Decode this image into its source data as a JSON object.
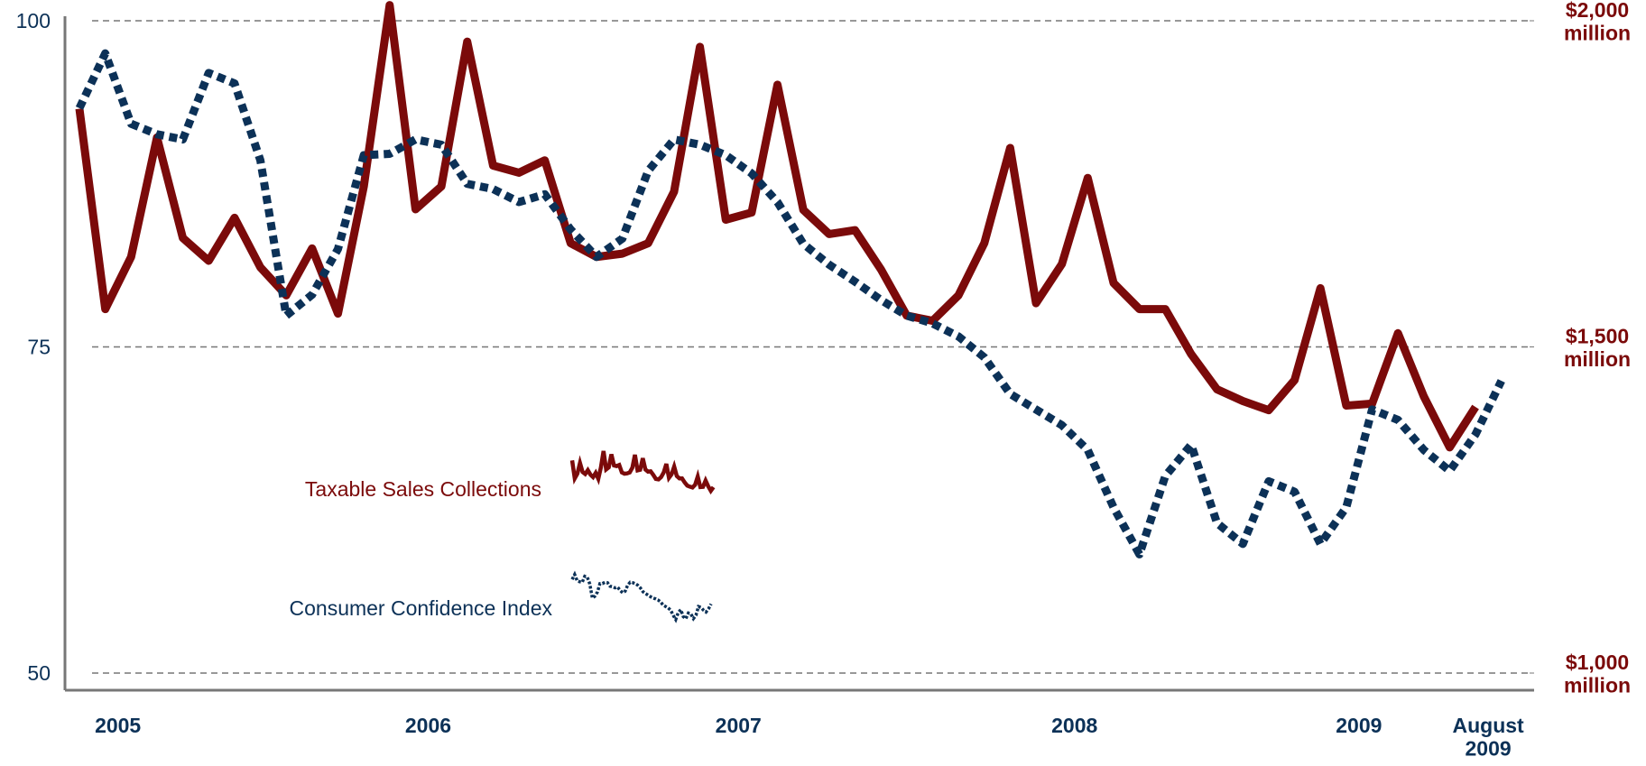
{
  "chart_data": {
    "type": "line",
    "categories": [
      null,
      "2005",
      null,
      null,
      null,
      null,
      null,
      null,
      null,
      null,
      null,
      null,
      null,
      "2006",
      null,
      null,
      null,
      null,
      null,
      null,
      null,
      null,
      null,
      null,
      null,
      "2007",
      null,
      null,
      null,
      null,
      null,
      null,
      null,
      null,
      null,
      null,
      null,
      null,
      "2008",
      null,
      null,
      null,
      null,
      null,
      null,
      null,
      null,
      null,
      null,
      "2009",
      null,
      null,
      null,
      null,
      "August 2009",
      null
    ],
    "series": [
      {
        "name": "Taxable Sales Collections",
        "color": "#7b0a0a",
        "axis": "y2",
        "style": "solid",
        "values": [
          1865,
          1558,
          1638,
          1821,
          1667,
          1632,
          1698,
          1622,
          1579,
          1651,
          1551,
          1746,
          2024,
          1711,
          1746,
          1968,
          1778,
          1767,
          1786,
          1659,
          1638,
          1643,
          1659,
          1738,
          1960,
          1695,
          1706,
          1902,
          1710,
          1673,
          1679,
          1619,
          1548,
          1540,
          1579,
          1659,
          1805,
          1567,
          1627,
          1759,
          1598,
          1558,
          1558,
          1489,
          1435,
          1417,
          1403,
          1449,
          1590,
          1410,
          1413,
          1521,
          1424,
          1346,
          1408,
          null
        ]
      },
      {
        "name": "Consumer Confidence Index",
        "color": "#0c3157",
        "axis": "y",
        "style": "dotted",
        "values": [
          93.3,
          97.5,
          92.1,
          91.3,
          90.9,
          96.0,
          95.2,
          89.3,
          77.4,
          79.0,
          82.5,
          89.7,
          89.8,
          90.9,
          90.5,
          87.5,
          87.1,
          86.1,
          86.7,
          84.0,
          81.9,
          83.3,
          88.5,
          90.9,
          90.5,
          89.7,
          88.3,
          86.1,
          82.9,
          81.3,
          80.0,
          78.6,
          77.4,
          76.8,
          75.8,
          74.2,
          71.4,
          70.2,
          69.0,
          67.1,
          62.7,
          59.1,
          65.1,
          67.5,
          61.5,
          59.9,
          64.7,
          63.9,
          59.9,
          62.7,
          70.2,
          69.4,
          67.1,
          65.5,
          68.3,
          72.4
        ]
      }
    ],
    "ylim": [
      50,
      100
    ],
    "yticks": [
      50,
      75,
      100
    ],
    "y2lim": [
      1000,
      2000
    ],
    "y2ticks": [
      {
        "value": 1000,
        "label": "$1,000 million"
      },
      {
        "value": 1500,
        "label": "$1,500 million"
      },
      {
        "value": 2000,
        "label": "$2,000 million"
      }
    ],
    "grid": true
  }
}
